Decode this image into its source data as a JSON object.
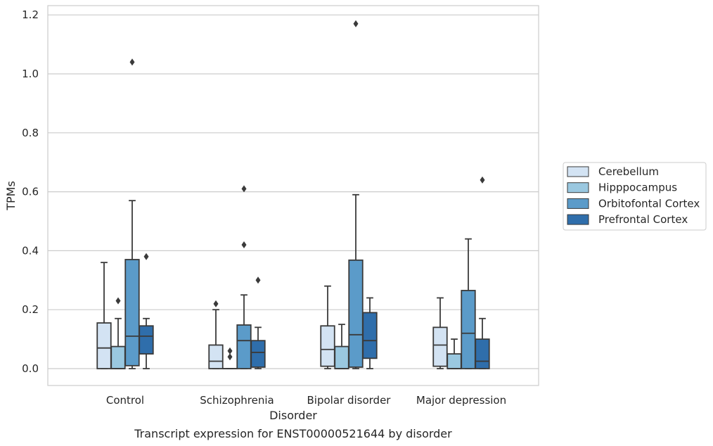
{
  "chart_data": {
    "type": "box",
    "xlabel": "Disorder",
    "ylabel": "TPMs",
    "caption": "Transcript expression for ENST00000521644 by disorder",
    "ylim": [
      -0.058,
      1.235
    ],
    "yticks": [
      "0.0",
      "0.2",
      "0.4",
      "0.6",
      "0.8",
      "1.0",
      "1.2"
    ],
    "yticks_values": [
      0.0,
      0.2,
      0.4,
      0.6,
      0.8,
      1.0,
      1.2
    ],
    "grid": "horizontal",
    "legend_position": "right",
    "categories": [
      "Control",
      "Schizophrenia",
      "Bipolar disorder",
      "Major depression"
    ],
    "series": [
      {
        "name": "Cerebellum",
        "color": "#d3e3f3",
        "boxes": [
          {
            "min": 0.0,
            "q1": 0.0,
            "median": 0.07,
            "q3": 0.155,
            "max": 0.36,
            "outliers": []
          },
          {
            "min": 0.0,
            "q1": 0.0,
            "median": 0.025,
            "q3": 0.08,
            "max": 0.2,
            "outliers": [
              0.22
            ]
          },
          {
            "min": 0.0,
            "q1": 0.008,
            "median": 0.065,
            "q3": 0.145,
            "max": 0.28,
            "outliers": []
          },
          {
            "min": 0.0,
            "q1": 0.008,
            "median": 0.08,
            "q3": 0.14,
            "max": 0.24,
            "outliers": []
          }
        ]
      },
      {
        "name": "Hipppocampus",
        "color": "#9ac8e0",
        "boxes": [
          {
            "min": 0.0,
            "q1": 0.0,
            "median": 0.0,
            "q3": 0.075,
            "max": 0.17,
            "outliers": [
              0.23
            ]
          },
          {
            "min": 0.0,
            "q1": 0.0,
            "median": 0.0,
            "q3": 0.0,
            "max": 0.0,
            "outliers": [
              0.04,
              0.06
            ]
          },
          {
            "min": 0.0,
            "q1": 0.0,
            "median": 0.0,
            "q3": 0.075,
            "max": 0.15,
            "outliers": []
          },
          {
            "min": 0.0,
            "q1": 0.0,
            "median": 0.0,
            "q3": 0.05,
            "max": 0.1,
            "outliers": []
          }
        ]
      },
      {
        "name": "Orbitofontal Cortex",
        "color": "#5b9bc9",
        "boxes": [
          {
            "min": 0.0,
            "q1": 0.01,
            "median": 0.11,
            "q3": 0.37,
            "max": 0.57,
            "outliers": [
              1.04
            ]
          },
          {
            "min": 0.0,
            "q1": 0.0,
            "median": 0.095,
            "q3": 0.148,
            "max": 0.25,
            "outliers": [
              0.42,
              0.61
            ]
          },
          {
            "min": 0.0,
            "q1": 0.005,
            "median": 0.115,
            "q3": 0.368,
            "max": 0.59,
            "outliers": [
              1.17
            ]
          },
          {
            "min": 0.0,
            "q1": 0.0,
            "median": 0.12,
            "q3": 0.265,
            "max": 0.44,
            "outliers": []
          }
        ]
      },
      {
        "name": "Prefrontal Cortex",
        "color": "#2f6eab",
        "boxes": [
          {
            "min": 0.0,
            "q1": 0.05,
            "median": 0.11,
            "q3": 0.145,
            "max": 0.17,
            "outliers": [
              0.38
            ]
          },
          {
            "min": 0.0,
            "q1": 0.005,
            "median": 0.055,
            "q3": 0.095,
            "max": 0.14,
            "outliers": [
              0.3
            ]
          },
          {
            "min": 0.0,
            "q1": 0.035,
            "median": 0.095,
            "q3": 0.19,
            "max": 0.24,
            "outliers": []
          },
          {
            "min": 0.0,
            "q1": 0.0,
            "median": 0.025,
            "q3": 0.1,
            "max": 0.17,
            "outliers": [
              0.64
            ]
          }
        ]
      }
    ]
  }
}
